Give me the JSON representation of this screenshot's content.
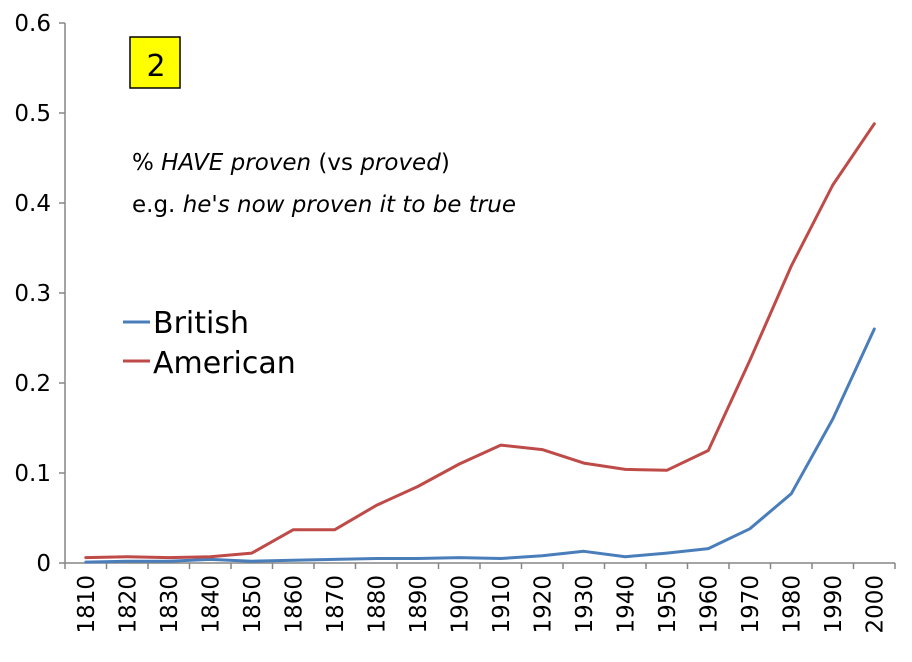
{
  "chart_data": {
    "type": "line",
    "title": "",
    "xlabel": "",
    "ylabel": "",
    "categories": [
      "1810",
      "1820",
      "1830",
      "1840",
      "1850",
      "1860",
      "1870",
      "1880",
      "1890",
      "1900",
      "1910",
      "1920",
      "1930",
      "1940",
      "1950",
      "1960",
      "1970",
      "1980",
      "1990",
      "2000"
    ],
    "ylim": [
      0,
      0.6
    ],
    "yticks": [
      "0",
      "0.1",
      "0.2",
      "0.3",
      "0.4",
      "0.5",
      "0.6"
    ],
    "grid": false,
    "legend_position": "left-middle",
    "series": [
      {
        "name": "British",
        "color": "#4A7EBB",
        "values": [
          0.001,
          0.002,
          0.002,
          0.004,
          0.002,
          0.003,
          0.004,
          0.005,
          0.005,
          0.006,
          0.005,
          0.008,
          0.013,
          0.007,
          0.011,
          0.016,
          0.038,
          0.077,
          0.16,
          0.26
        ]
      },
      {
        "name": "American",
        "color": "#BE4B48",
        "values": [
          0.006,
          0.007,
          0.006,
          0.007,
          0.011,
          0.037,
          0.037,
          0.064,
          0.085,
          0.11,
          0.131,
          0.126,
          0.111,
          0.104,
          0.103,
          0.125,
          0.225,
          0.33,
          0.42,
          0.488
        ]
      }
    ],
    "badge": {
      "text": "2",
      "color": "#FFFF00"
    },
    "annotation": {
      "line1": {
        "pre": "% ",
        "em1": "HAVE proven",
        "mid": " (vs ",
        "em2": "proved",
        "post": ")"
      },
      "line2": {
        "pre": "e.g. ",
        "em": "he's now proven it to be true"
      }
    }
  }
}
